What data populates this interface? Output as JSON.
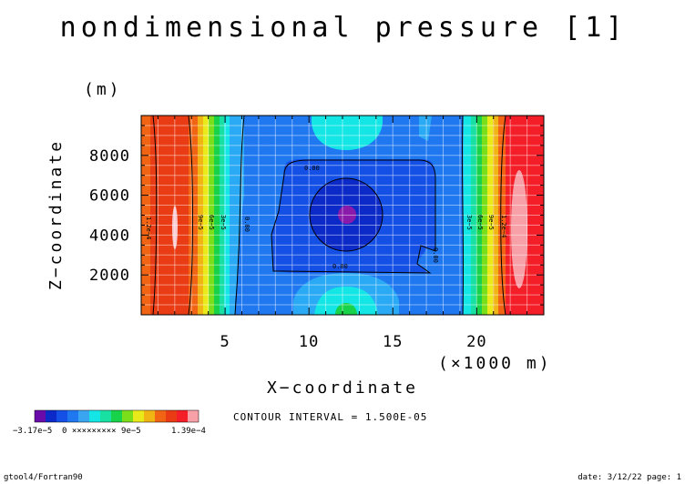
{
  "chart_data": {
    "type": "heatmap",
    "title": "nondimensional pressure [1]",
    "xlabel": "X−coordinate",
    "x_unit": "(×1000 m)",
    "ylabel": "Z−coordinate",
    "y_unit": "(m)",
    "xlim": [
      0,
      24
    ],
    "ylim": [
      0,
      10000
    ],
    "x_ticks": [
      5,
      10,
      15,
      20
    ],
    "x_tick_labels": [
      "5",
      "10",
      "15",
      "20"
    ],
    "y_ticks": [
      2000,
      4000,
      6000,
      8000
    ],
    "y_tick_labels": [
      "2000",
      "4000",
      "6000",
      "8000"
    ],
    "grid": true,
    "contour_interval": "CONTOUR INTERVAL = 1.500E-05",
    "colorbar": {
      "min_label": "−3.17e−5",
      "max_label": "1.39e−4",
      "inner_labels": "0 ×××××××××  9e−5",
      "colors": [
        "#6a0aa8",
        "#0b2ac8",
        "#1450e6",
        "#1f78f0",
        "#3aa6f2",
        "#14e6e6",
        "#18e0a2",
        "#18d24a",
        "#7ade1a",
        "#eaea1a",
        "#f0b414",
        "#f06414",
        "#ea3c14",
        "#f41e28",
        "#f8a0a8"
      ]
    },
    "contour_labels": [
      "0.00",
      "0.00",
      "0.00",
      "0.00",
      "1.2e−4",
      "9e−5",
      "6e−5",
      "3e−5",
      "3e−5",
      "6e−5",
      "9e−5",
      "1.2e−4"
    ],
    "annotations": {
      "left_footer": "gtool4/Fortran90",
      "right_footer": "date: 3/12/22 page: 1"
    }
  }
}
